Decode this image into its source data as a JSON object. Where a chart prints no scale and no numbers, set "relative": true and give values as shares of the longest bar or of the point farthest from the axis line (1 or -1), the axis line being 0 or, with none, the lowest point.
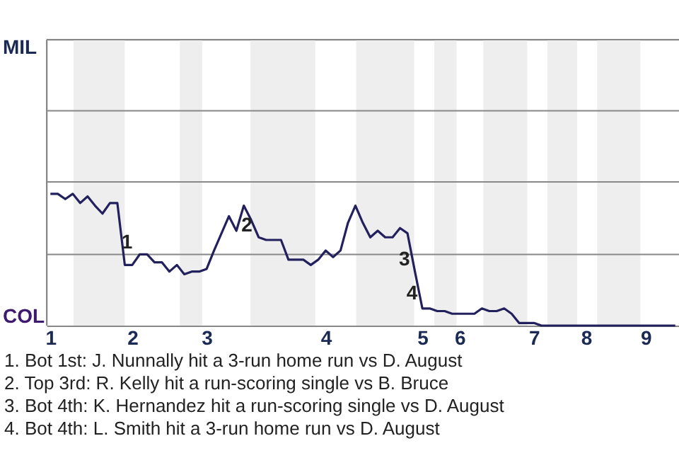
{
  "chart_data": {
    "type": "line",
    "relative": true,
    "categories": [
      "1",
      null,
      null,
      null,
      null,
      null,
      null,
      null,
      null,
      null,
      null,
      "2",
      null,
      null,
      null,
      null,
      null,
      null,
      null,
      null,
      null,
      "3",
      null,
      null,
      null,
      null,
      null,
      null,
      null,
      null,
      null,
      null,
      null,
      null,
      null,
      null,
      null,
      "4",
      null,
      null,
      null,
      null,
      null,
      null,
      null,
      null,
      null,
      null,
      null,
      null,
      "5",
      null,
      null,
      null,
      null,
      "6",
      null,
      null,
      null,
      null,
      null,
      null,
      null,
      null,
      null,
      "7",
      null,
      null,
      null,
      null,
      null,
      null,
      "8",
      null,
      null,
      null,
      null,
      null,
      null,
      null,
      "9",
      null,
      null,
      null,
      null
    ],
    "series": [
      {
        "color": "#23205e",
        "values": [
          1,
          1,
          0.96,
          1,
          0.93,
          0.98,
          0.91,
          0.85,
          0.93,
          0.93,
          0.46,
          0.46,
          0.54,
          0.54,
          0.48,
          0.48,
          0.41,
          0.46,
          0.39,
          0.41,
          0.41,
          0.43,
          0.57,
          0.7,
          0.83,
          0.72,
          0.91,
          0.8,
          0.67,
          0.65,
          0.65,
          0.65,
          0.5,
          0.5,
          0.5,
          0.46,
          0.5,
          0.57,
          0.52,
          0.57,
          0.78,
          0.91,
          0.78,
          0.67,
          0.72,
          0.67,
          0.67,
          0.74,
          0.7,
          0.41,
          0.13,
          0.13,
          0.11,
          0.11,
          0.09,
          0.09,
          0.09,
          0.09,
          0.13,
          0.11,
          0.11,
          0.13,
          0.09,
          0.02,
          0.02,
          0.02,
          0,
          0,
          0,
          0,
          0,
          0,
          0,
          0,
          0,
          0,
          0,
          0,
          0,
          0,
          0,
          0,
          0,
          0,
          0
        ]
      }
    ],
    "ref_lines": [
      {
        "axis": "y",
        "value": 0.54,
        "color": "#888888"
      },
      {
        "axis": "y",
        "value": 1.09,
        "color": "#888888"
      },
      {
        "axis": "y",
        "value": 1.63,
        "color": "#888888"
      },
      {
        "axis": "y",
        "value": 2.17,
        "color": "#888888"
      }
    ],
    "annotations": [
      "MIL",
      "COL",
      {
        "text": "1",
        "y": 0.63
      },
      {
        "text": "2",
        "y": 0.76
      },
      {
        "text": "3",
        "y": 0.5
      },
      {
        "text": "4",
        "y": 0.24
      },
      "1. Bot 1st: J. Nunnally hit a 3-run home run vs D. August",
      "2. Top 3rd: R. Kelly hit a run-scoring single vs B. Bruce",
      "3. Bot 4th: K. Hernandez hit a run-scoring single vs D. August",
      "4. Bot 4th: L. Smith hit a 3-run home run vs D. August"
    ]
  }
}
